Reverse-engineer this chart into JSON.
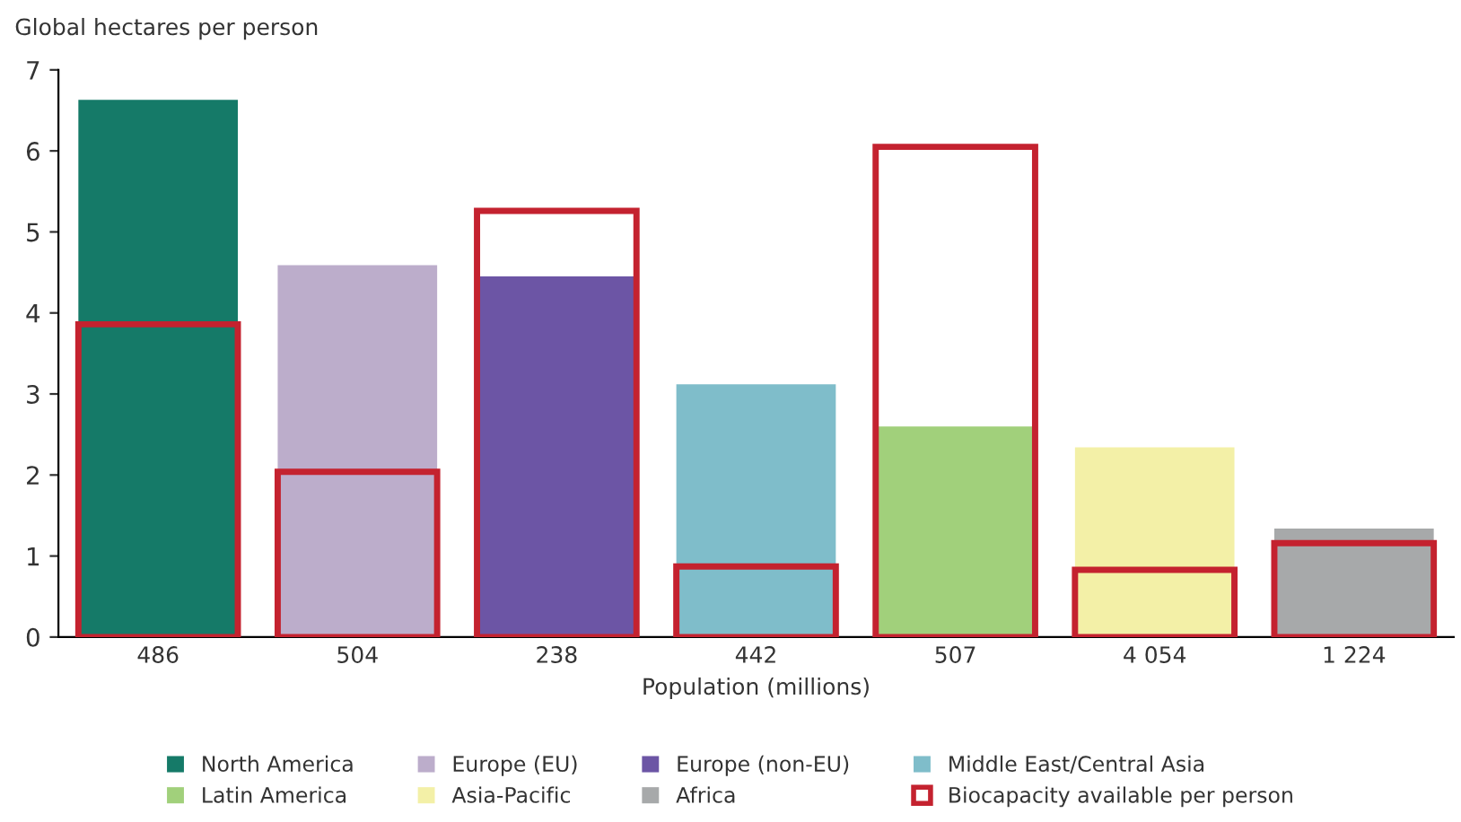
{
  "chart_data": {
    "type": "bar",
    "ylabel": "Global hectares per person",
    "xlabel": "Population (millions)",
    "categories": [
      "486",
      "504",
      "238",
      "442",
      "507",
      "4 054",
      "1 224"
    ],
    "series": [
      {
        "name": "North America",
        "color": "#157a68",
        "values": [
          6.63,
          null,
          null,
          null,
          null,
          null,
          null
        ]
      },
      {
        "name": "Europe (EU)",
        "color": "#bcadcb",
        "values": [
          null,
          4.59,
          null,
          null,
          null,
          null,
          null
        ]
      },
      {
        "name": "Europe (non-EU)",
        "color": "#6c55a5",
        "values": [
          null,
          null,
          4.45,
          null,
          null,
          null,
          null
        ]
      },
      {
        "name": "Middle East/Central Asia",
        "color": "#7fbdca",
        "values": [
          null,
          null,
          null,
          3.12,
          null,
          null,
          null
        ]
      },
      {
        "name": "Latin America",
        "color": "#a1d07b",
        "values": [
          null,
          null,
          null,
          null,
          2.6,
          null,
          null
        ]
      },
      {
        "name": "Asia-Pacific",
        "color": "#f3f0a7",
        "values": [
          null,
          null,
          null,
          null,
          null,
          2.34,
          null
        ]
      },
      {
        "name": "Africa",
        "color": "#a7a9aa",
        "values": [
          null,
          null,
          null,
          null,
          null,
          null,
          1.34
        ]
      },
      {
        "name": "Biocapacity available per person",
        "color": "#c4222f",
        "values": [
          3.86,
          2.04,
          5.26,
          0.87,
          6.05,
          0.83,
          1.16
        ]
      }
    ],
    "ylim": [
      0,
      7
    ],
    "yticks": [
      0,
      1,
      2,
      3,
      4,
      5,
      6,
      7
    ],
    "grid": false,
    "legend": "bottom"
  }
}
